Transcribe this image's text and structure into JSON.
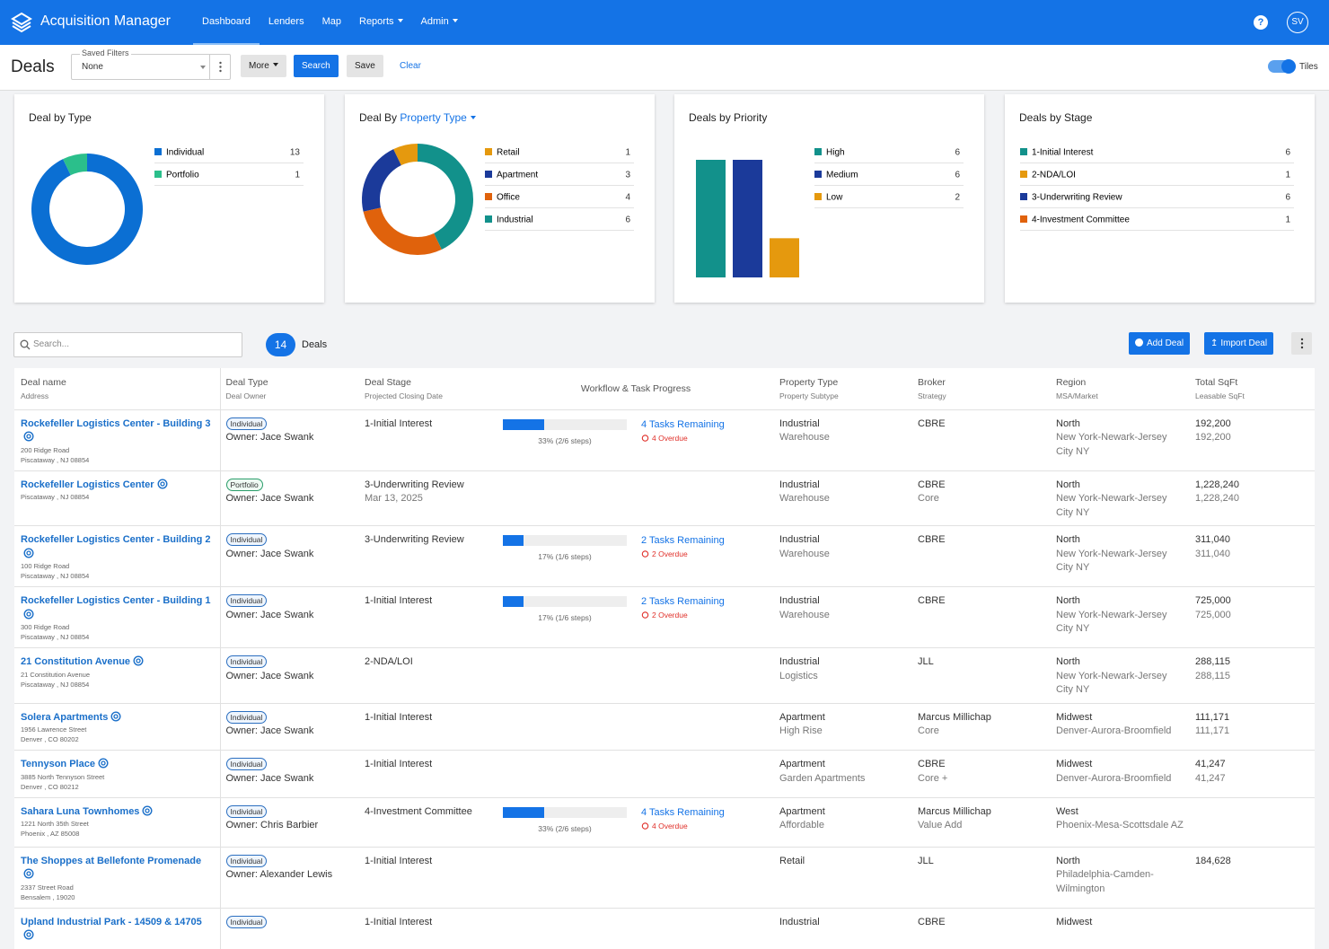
{
  "nav": {
    "brand": "Acquisition Manager",
    "items": [
      {
        "label": "Dashboard",
        "active": true
      },
      {
        "label": "Lenders"
      },
      {
        "label": "Map"
      },
      {
        "label": "Reports",
        "dropdown": true
      },
      {
        "label": "Admin",
        "dropdown": true
      }
    ],
    "help": "?",
    "avatar": "SV"
  },
  "toolbar": {
    "title": "Deals",
    "filter_label": "Saved Filters",
    "filter_value": "None",
    "buttons": [
      "More",
      "Search",
      "Save",
      "Clear"
    ],
    "toggle": "Tiles"
  },
  "widgets": [
    {
      "title": "Deal by Type",
      "type": "donut",
      "direction": "clockwise",
      "categories": [
        "Individual",
        "Portfolio"
      ],
      "values": [
        13,
        1
      ],
      "colors": [
        "#0b6fd3",
        "#2bbf8b"
      ]
    },
    {
      "title": "Deal By",
      "title_link": "Property Type",
      "type": "donut",
      "direction": "counterclockwise",
      "categories": [
        "Retail",
        "Apartment",
        "Office",
        "Industrial"
      ],
      "values": [
        1,
        3,
        4,
        6
      ],
      "colors": [
        "#e5990e",
        "#1b3a9a",
        "#e0620c",
        "#12918b"
      ]
    },
    {
      "title": "Deals by Priority",
      "type": "bar",
      "categories": [
        "High",
        "Medium",
        "Low"
      ],
      "values": [
        6,
        6,
        2
      ],
      "colors": [
        "#12918b",
        "#1b3a9a",
        "#e5990e"
      ]
    },
    {
      "title": "Deals by Stage",
      "type": "legend",
      "categories": [
        "1-Initial Interest",
        "2-NDA/LOI",
        "3-Underwriting Review",
        "4-Investment Committee"
      ],
      "values": [
        6,
        1,
        6,
        1
      ],
      "colors": [
        "#12918b",
        "#e5990e",
        "#1b3a9a",
        "#e0620c"
      ]
    }
  ],
  "list": {
    "search_placeholder": "Search...",
    "count": 14,
    "count_label": "Deals",
    "buttons": [
      "Add Deal",
      "Import Deal"
    ]
  },
  "table": {
    "columns": [
      {
        "title": "Deal name",
        "sub": "Address"
      },
      {
        "title": "Deal Type",
        "sub": "Deal Owner"
      },
      {
        "title": "Deal Stage",
        "sub": "Projected Closing Date"
      },
      {
        "title": "Workflow & Task Progress"
      },
      {
        "title": "Property Type",
        "sub": "Property Subtype"
      },
      {
        "title": "Broker",
        "sub": "Strategy"
      },
      {
        "title": "Region",
        "sub": "MSA/Market"
      },
      {
        "title": "Total SqFt",
        "sub": "Leasable SqFt"
      }
    ],
    "rows": [
      {
        "name": "Rockefeller Logistics Center - Building 3",
        "address": [
          "200 Ridge Road",
          "Piscataway , NJ 08854"
        ],
        "type": "Individual",
        "owner": "Owner: Jace Swank",
        "stage": "1-Initial Interest",
        "progress": 33,
        "progress_label": "33% (2/6 steps)",
        "tasks": "4 Tasks Remaining",
        "overdue": "4 Overdue",
        "property": "Industrial",
        "subtype": "Warehouse",
        "broker": "CBRE",
        "region": "North",
        "market": "New York-Newark-Jersey City NY",
        "sqft": "192,200",
        "leasable": "192,200"
      },
      {
        "name": "Rockefeller Logistics Center",
        "address": [
          "Piscataway , NJ 08854"
        ],
        "type": "Portfolio",
        "type_color": "#2a9d6a",
        "owner": "Owner: Jace Swank",
        "stage": "3-Underwriting Review",
        "closing": "Mar 13, 2025",
        "property": "Industrial",
        "subtype": "Warehouse",
        "broker": "CBRE",
        "strategy": "Core",
        "region": "North",
        "market": "New York-Newark-Jersey City NY",
        "sqft": "1,228,240",
        "leasable": "1,228,240"
      },
      {
        "name": "Rockefeller Logistics Center - Building 2",
        "address": [
          "100 Ridge Road",
          "Piscataway , NJ 08854"
        ],
        "type": "Individual",
        "owner": "Owner: Jace Swank",
        "stage": "3-Underwriting Review",
        "progress": 17,
        "progress_label": "17% (1/6 steps)",
        "tasks": "2 Tasks Remaining",
        "overdue": "2 Overdue",
        "property": "Industrial",
        "subtype": "Warehouse",
        "broker": "CBRE",
        "region": "North",
        "market": "New York-Newark-Jersey City NY",
        "sqft": "311,040",
        "leasable": "311,040"
      },
      {
        "name": "Rockefeller Logistics Center - Building 1",
        "address": [
          "300 Ridge Road",
          "Piscataway , NJ 08854"
        ],
        "type": "Individual",
        "owner": "Owner: Jace Swank",
        "stage": "1-Initial Interest",
        "progress": 17,
        "progress_label": "17% (1/6 steps)",
        "tasks": "2 Tasks Remaining",
        "overdue": "2 Overdue",
        "property": "Industrial",
        "subtype": "Warehouse",
        "broker": "CBRE",
        "region": "North",
        "market": "New York-Newark-Jersey City NY",
        "sqft": "725,000",
        "leasable": "725,000"
      },
      {
        "name": "21 Constitution Avenue",
        "address": [
          "21 Constitution Avenue",
          "Piscataway , NJ 08854"
        ],
        "type": "Individual",
        "owner": "Owner: Jace Swank",
        "stage": "2-NDA/LOI",
        "property": "Industrial",
        "subtype": "Logistics",
        "broker": "JLL",
        "region": "North",
        "market": "New York-Newark-Jersey City NY",
        "sqft": "288,115",
        "leasable": "288,115"
      },
      {
        "name": "Solera Apartments",
        "address": [
          "1956 Lawrence Street",
          "Denver , CO 80202"
        ],
        "type": "Individual",
        "owner": "Owner: Jace Swank",
        "stage": "1-Initial Interest",
        "property": "Apartment",
        "subtype": "High Rise",
        "broker": "Marcus Millichap",
        "strategy": "Core",
        "region": "Midwest",
        "market": "Denver-Aurora-Broomfield",
        "sqft": "111,171",
        "leasable": "111,171"
      },
      {
        "name": "Tennyson Place",
        "address": [
          "3885 North Tennyson Street",
          "Denver , CO 80212"
        ],
        "type": "Individual",
        "owner": "Owner: Jace Swank",
        "stage": "1-Initial Interest",
        "property": "Apartment",
        "subtype": "Garden Apartments",
        "broker": "CBRE",
        "strategy": "Core +",
        "region": "Midwest",
        "market": "Denver-Aurora-Broomfield",
        "sqft": "41,247",
        "leasable": "41,247"
      },
      {
        "name": "Sahara Luna Townhomes",
        "address": [
          "1221 North 35th Street",
          "Phoenix , AZ 85008"
        ],
        "type": "Individual",
        "owner": "Owner: Chris Barbier",
        "stage": "4-Investment Committee",
        "progress": 33,
        "progress_label": "33% (2/6 steps)",
        "tasks": "4 Tasks Remaining",
        "overdue": "4 Overdue",
        "property": "Apartment",
        "subtype": "Affordable",
        "broker": "Marcus Millichap",
        "strategy": "Value Add",
        "region": "West",
        "market": "Phoenix-Mesa-Scottsdale AZ"
      },
      {
        "name": "The Shoppes at Bellefonte Promenade",
        "address": [
          "2337 Street Road",
          "Bensalem , 19020"
        ],
        "type": "Individual",
        "owner": "Owner: Alexander Lewis",
        "stage": "1-Initial Interest",
        "property": "Retail",
        "broker": "JLL",
        "region": "North",
        "market": "Philadelphia-Camden-Wilmington",
        "sqft": "184,628"
      },
      {
        "name": "Upland Industrial Park - 14509 & 14705",
        "type": "Individual",
        "stage": "1-Initial Interest",
        "property": "Industrial",
        "broker": "CBRE",
        "region": "Midwest"
      }
    ]
  }
}
